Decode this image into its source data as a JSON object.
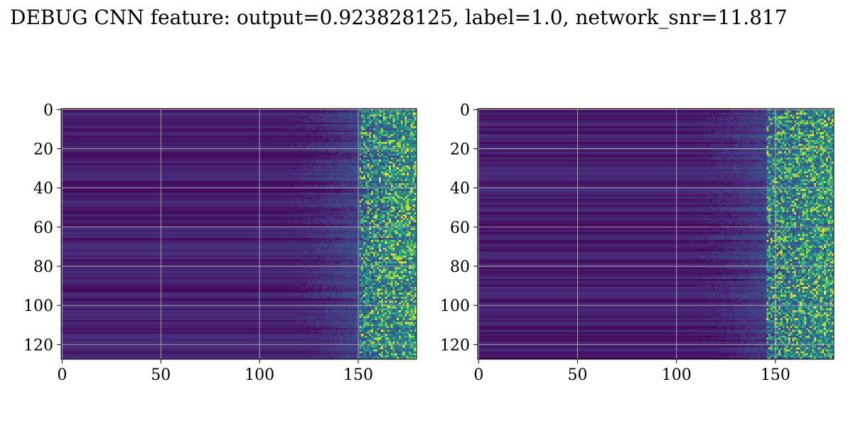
{
  "figure": {
    "title": "DEBUG CNN feature: output=0.923828125, label=1.0, network_snr=11.817"
  },
  "colormap": [
    "#440154",
    "#482878",
    "#3e4989",
    "#31688e",
    "#26828e",
    "#1f9e89",
    "#35b779",
    "#6ece58",
    "#b5de2b",
    "#fde725"
  ],
  "grid_color": "#b0b0b0",
  "chart_data": [
    {
      "type": "heatmap",
      "shape": [
        128,
        180
      ],
      "xticks": [
        0,
        50,
        100,
        150
      ],
      "yticks": [
        0,
        20,
        40,
        60,
        80,
        100,
        120
      ],
      "xlim": [
        -0.5,
        179.5
      ],
      "ylim": [
        127.5,
        -0.5
      ],
      "grid": true,
      "texture": {
        "onset_col": 125,
        "bright_start_col": 150,
        "seed": 7
      }
    },
    {
      "type": "heatmap",
      "shape": [
        128,
        180
      ],
      "xticks": [
        0,
        50,
        100,
        150
      ],
      "yticks": [
        0,
        20,
        40,
        60,
        80,
        100,
        120
      ],
      "xlim": [
        -0.5,
        179.5
      ],
      "ylim": [
        127.5,
        -0.5
      ],
      "grid": true,
      "texture": {
        "onset_col": 118,
        "bright_start_col": 145,
        "seed": 23
      }
    }
  ]
}
